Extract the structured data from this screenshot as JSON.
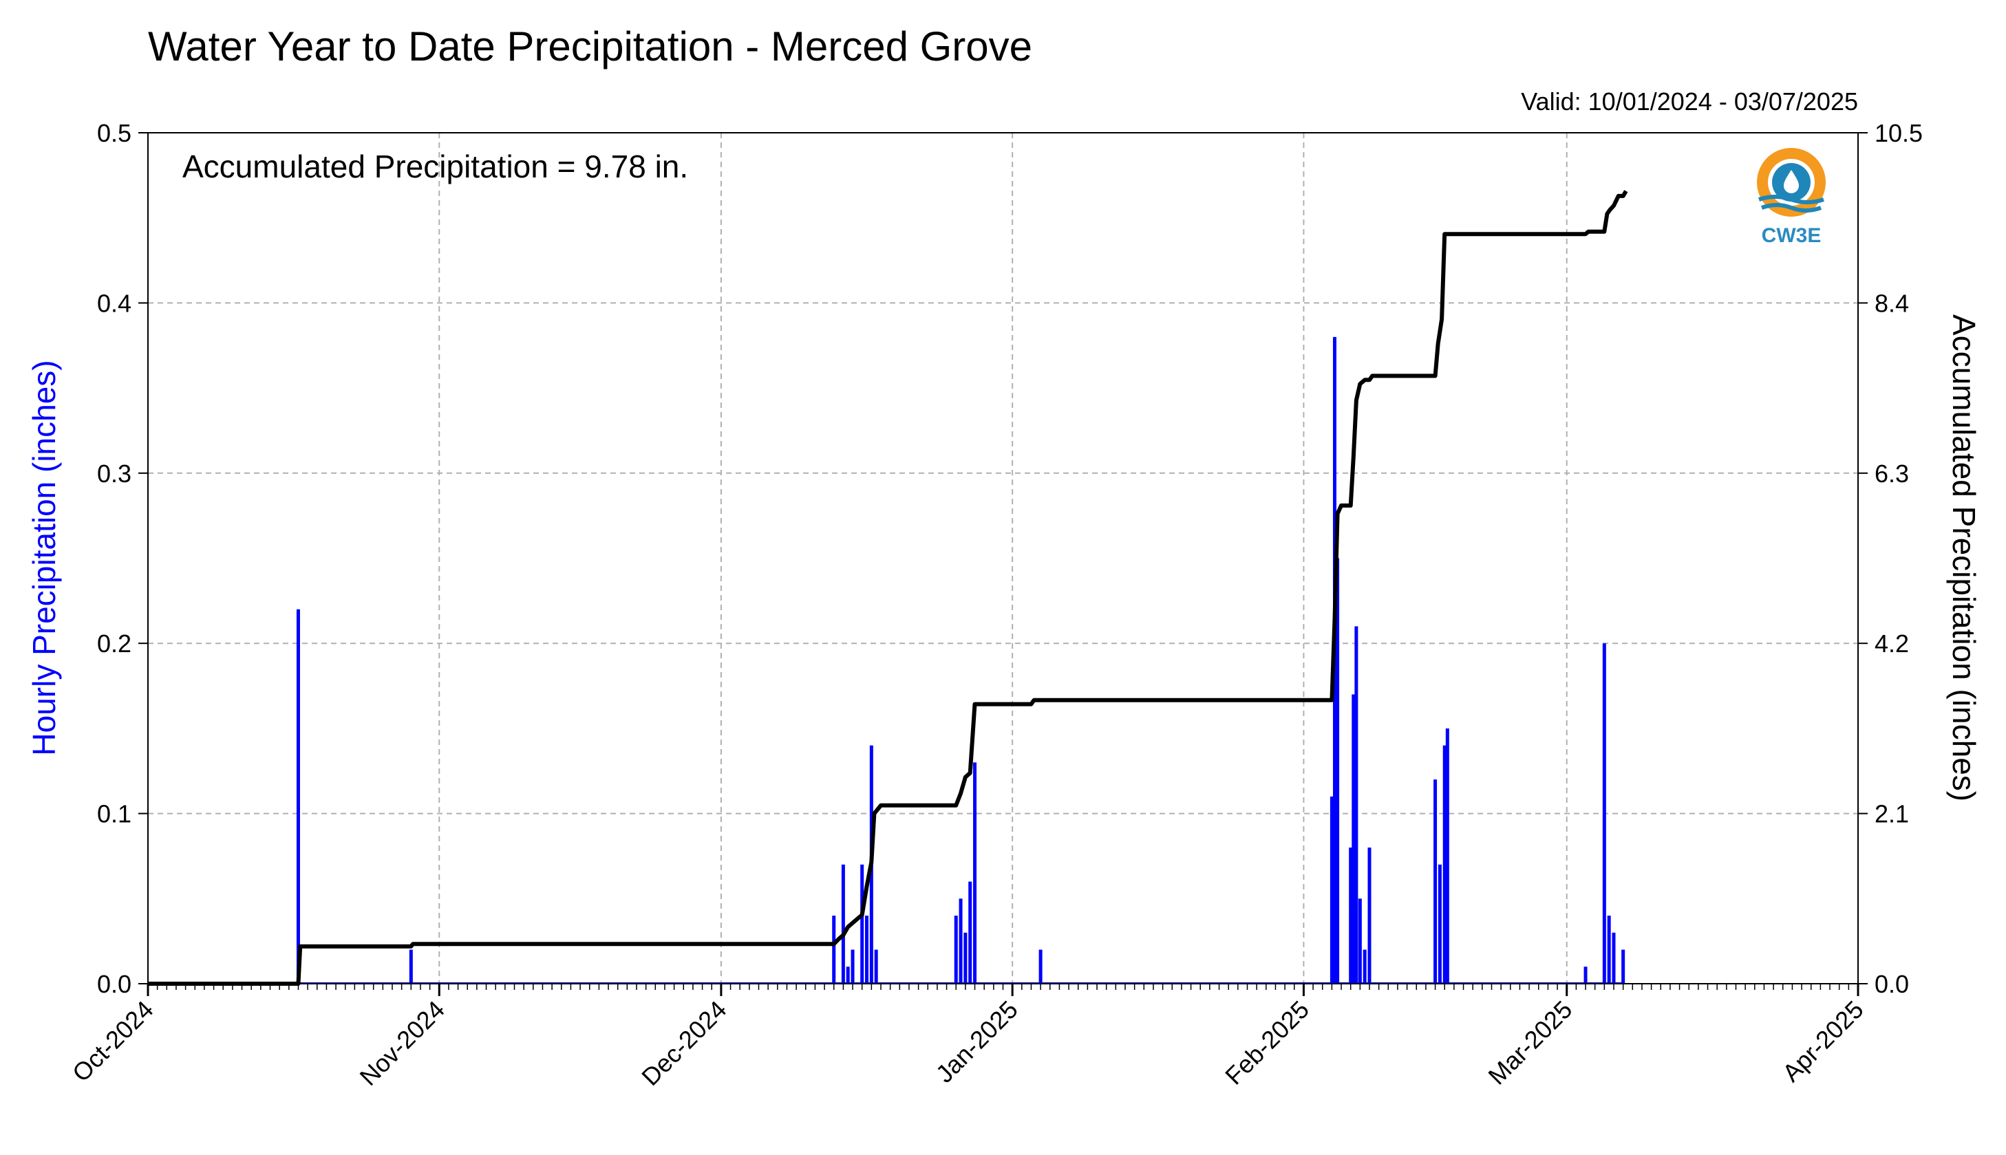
{
  "chart_data": {
    "type": "bar",
    "title": "Water Year to Date Precipitation - Merced Grove",
    "valid_text": "Valid: 10/01/2024 - 03/07/2025",
    "annotation": "Accumulated Precipitation = 9.78 in.",
    "logo_text": "CW3E",
    "ylabel": "Hourly Precipitation (inches)",
    "y2label": "Accumulated Precipitation (inches)",
    "xlim": [
      "2024-10-01",
      "2025-04-01"
    ],
    "ylim": [
      0,
      0.5
    ],
    "y2lim": [
      0,
      10.5
    ],
    "grid": true,
    "x_ticks": [
      "2024-10-01",
      "2024-11-01",
      "2024-12-01",
      "2025-01-01",
      "2025-02-01",
      "2025-03-01",
      "2025-04-01"
    ],
    "x_tick_labels": [
      "Oct-2024",
      "Nov-2024",
      "Dec-2024",
      "Jan-2025",
      "Feb-2025",
      "Mar-2025",
      "Apr-2025"
    ],
    "y_ticks": [
      "0.0",
      "0.1",
      "0.2",
      "0.3",
      "0.4",
      "0.5"
    ],
    "y2_ticks": [
      "0.0",
      "2.1",
      "4.2",
      "6.3",
      "8.4",
      "10.5"
    ],
    "series": [
      {
        "name": "Hourly Precipitation",
        "color": "#0000ff",
        "points": [
          [
            "2024-10-17",
            0.22
          ],
          [
            "2024-10-29",
            0.02
          ],
          [
            "2024-12-13",
            0.04
          ],
          [
            "2024-12-14",
            0.07
          ],
          [
            "2024-12-14.5",
            0.01
          ],
          [
            "2024-12-15",
            0.02
          ],
          [
            "2024-12-16",
            0.07
          ],
          [
            "2024-12-16.5",
            0.04
          ],
          [
            "2024-12-17",
            0.14
          ],
          [
            "2024-12-17.5",
            0.02
          ],
          [
            "2024-12-26",
            0.04
          ],
          [
            "2024-12-26.5",
            0.05
          ],
          [
            "2024-12-27",
            0.03
          ],
          [
            "2024-12-27.5",
            0.06
          ],
          [
            "2024-12-28",
            0.13
          ],
          [
            "2025-01-04",
            0.02
          ],
          [
            "2025-02-04",
            0.11
          ],
          [
            "2025-02-04.3",
            0.38
          ],
          [
            "2025-02-04.6",
            0.25
          ],
          [
            "2025-02-06",
            0.08
          ],
          [
            "2025-02-06.3",
            0.17
          ],
          [
            "2025-02-06.6",
            0.21
          ],
          [
            "2025-02-07",
            0.05
          ],
          [
            "2025-02-07.5",
            0.02
          ],
          [
            "2025-02-08",
            0.08
          ],
          [
            "2025-02-15",
            0.12
          ],
          [
            "2025-02-15.5",
            0.07
          ],
          [
            "2025-02-16",
            0.14
          ],
          [
            "2025-02-16.3",
            0.15
          ],
          [
            "2025-03-03",
            0.01
          ],
          [
            "2025-03-05",
            0.2
          ],
          [
            "2025-03-05.5",
            0.04
          ],
          [
            "2025-03-06",
            0.03
          ],
          [
            "2025-03-07",
            0.02
          ]
        ]
      },
      {
        "name": "Accumulated Precipitation",
        "color": "#000000",
        "points": [
          [
            "2024-10-01",
            0.0
          ],
          [
            "2024-10-17",
            0.0
          ],
          [
            "2024-10-17.2",
            0.46
          ],
          [
            "2024-10-29",
            0.46
          ],
          [
            "2024-10-29.2",
            0.49
          ],
          [
            "2024-12-13",
            0.49
          ],
          [
            "2024-12-13.5",
            0.55
          ],
          [
            "2024-12-14",
            0.6
          ],
          [
            "2024-12-14.5",
            0.7
          ],
          [
            "2024-12-15",
            0.75
          ],
          [
            "2024-12-16",
            0.85
          ],
          [
            "2024-12-16.5",
            1.2
          ],
          [
            "2024-12-17",
            1.5
          ],
          [
            "2024-12-17.3",
            2.1
          ],
          [
            "2024-12-18",
            2.2
          ],
          [
            "2024-12-26",
            2.2
          ],
          [
            "2024-12-26.5",
            2.35
          ],
          [
            "2024-12-27",
            2.55
          ],
          [
            "2024-12-27.5",
            2.6
          ],
          [
            "2024-12-28",
            3.45
          ],
          [
            "2025-01-03",
            3.45
          ],
          [
            "2025-01-03.3",
            3.5
          ],
          [
            "2025-02-04",
            3.5
          ],
          [
            "2025-02-04.3",
            4.5
          ],
          [
            "2025-02-04.6",
            5.8
          ],
          [
            "2025-02-05",
            5.9
          ],
          [
            "2025-02-06",
            5.9
          ],
          [
            "2025-02-06.3",
            6.5
          ],
          [
            "2025-02-06.6",
            7.2
          ],
          [
            "2025-02-07",
            7.4
          ],
          [
            "2025-02-07.5",
            7.45
          ],
          [
            "2025-02-08",
            7.45
          ],
          [
            "2025-02-08.3",
            7.5
          ],
          [
            "2025-02-15",
            7.5
          ],
          [
            "2025-02-15.3",
            7.9
          ],
          [
            "2025-02-15.7",
            8.2
          ],
          [
            "2025-02-16",
            9.25
          ],
          [
            "2025-03-03",
            9.25
          ],
          [
            "2025-03-03.3",
            9.28
          ],
          [
            "2025-03-05",
            9.28
          ],
          [
            "2025-03-05.3",
            9.5
          ],
          [
            "2025-03-05.6",
            9.55
          ],
          [
            "2025-03-06",
            9.6
          ],
          [
            "2025-03-06.5",
            9.72
          ],
          [
            "2025-03-07",
            9.72
          ],
          [
            "2025-03-07.3",
            9.78
          ]
        ]
      }
    ]
  }
}
